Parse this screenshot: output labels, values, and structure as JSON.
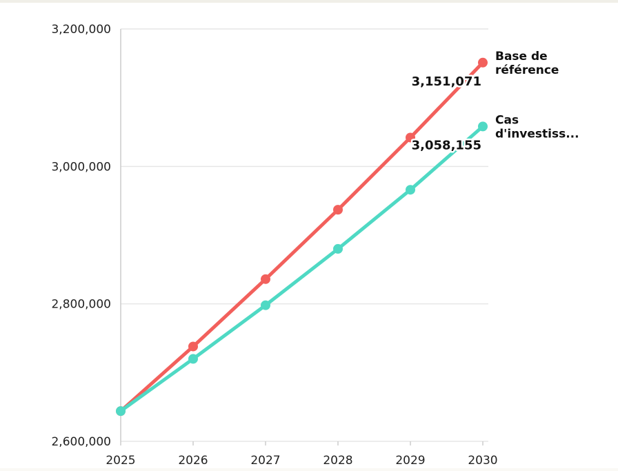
{
  "colors": {
    "baseline": "#f2605c",
    "investment": "#4fd9c4",
    "grid": "#e6e6e6",
    "axis": "#cccccc"
  },
  "chart_data": {
    "type": "line",
    "title": "",
    "xlabel": "",
    "ylabel": "",
    "x": [
      2025,
      2026,
      2027,
      2028,
      2029,
      2030
    ],
    "x_tick_labels": [
      "2025",
      "2026",
      "2027",
      "2028",
      "2029",
      "2030"
    ],
    "ylim": [
      2600000,
      3200000
    ],
    "y_ticks": [
      2600000,
      2800000,
      3000000,
      3200000
    ],
    "y_tick_labels": [
      "2,600,000",
      "2,800,000",
      "3,000,000",
      "3,200,000"
    ],
    "grid": true,
    "legend": "none",
    "series": [
      {
        "key": "baseline",
        "name_lines": [
          "Base de",
          "référence"
        ],
        "color": "#f2605c",
        "values": [
          2644000,
          2738000,
          2836000,
          2937000,
          3042000,
          3151071
        ],
        "end_label": "3,151,071"
      },
      {
        "key": "investment",
        "name_lines": [
          "Cas",
          "d'investiss..."
        ],
        "color": "#4fd9c4",
        "values": [
          2644000,
          2720000,
          2798000,
          2880000,
          2966000,
          3058155
        ],
        "end_label": "3,058,155"
      }
    ]
  }
}
